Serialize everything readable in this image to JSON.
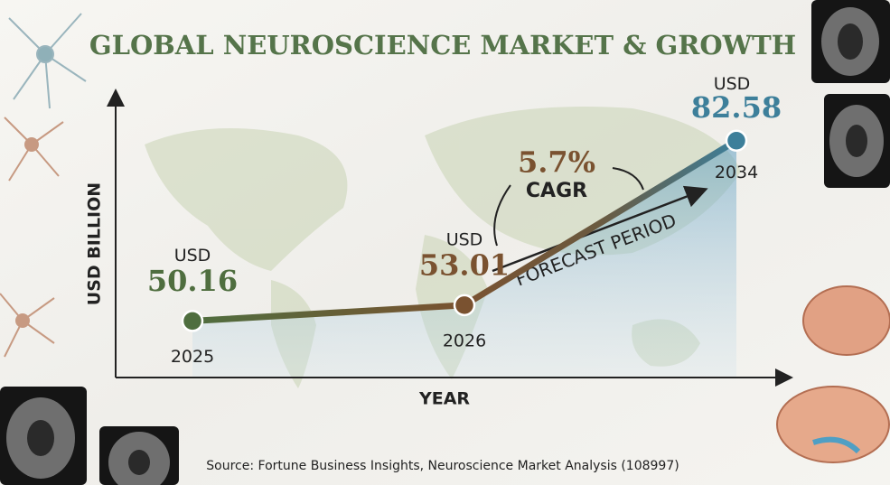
{
  "chart_data": {
    "type": "line",
    "title": "GLOBAL NEUROSCIENCE MARKET & GROWTH",
    "xlabel": "YEAR",
    "ylabel": "USD BILLION",
    "categories": [
      "2025",
      "2026",
      "2034"
    ],
    "values": [
      50.16,
      53.01,
      82.58
    ],
    "value_unit": "USD",
    "point_colors": [
      "#4f6e3f",
      "#7a5230",
      "#3d7f9a"
    ],
    "ylim": [
      40,
      90
    ],
    "annotations": [
      "5.7%",
      "CAGR",
      "FORECAST PERIOD"
    ],
    "source": "Source: Fortune Business Insights, Neuroscience Market Analysis (108997)"
  }
}
